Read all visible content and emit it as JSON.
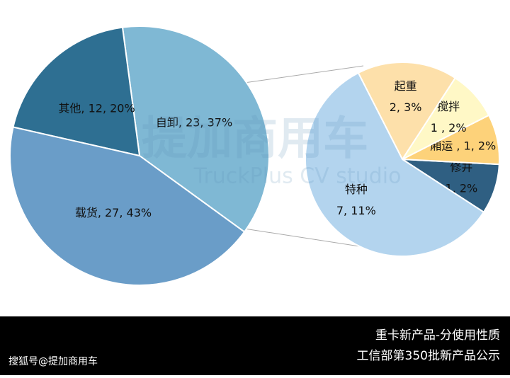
{
  "chart_data": [
    {
      "type": "pie",
      "categories": [
        "自卸",
        "其他",
        "载货"
      ],
      "values": [
        23,
        12,
        27
      ],
      "percents": [
        37,
        20,
        43
      ],
      "value_labels": [
        [
          "自卸, 23, 37%"
        ],
        [
          "其他, 12, 20%"
        ],
        [
          "载货, 27, 43%"
        ]
      ],
      "colors": [
        "#7fb8d4",
        "#2e6f92",
        "#6a9dc8"
      ]
    },
    {
      "type": "pie",
      "categories": [
        "修井",
        "厢运",
        "搅拌",
        "起重",
        "特种"
      ],
      "values": [
        1,
        1,
        1,
        2,
        7
      ],
      "percents": [
        2,
        2,
        2,
        3,
        11
      ],
      "value_labels": [
        [
          "修井",
          "1, 2%"
        ],
        [
          "厢运 , 1, 2%"
        ],
        [
          "搅拌",
          "1 , 2%"
        ],
        [
          "起重",
          "2, 3%"
        ],
        [
          "特种",
          "7, 11%"
        ]
      ],
      "colors": [
        "#2f5f82",
        "#fdd27a",
        "#fff8c6",
        "#fde0aa",
        "#b3d4ee"
      ]
    }
  ],
  "watermark": {
    "logo": "提加商用车",
    "sub": "TruckPlus CV studio"
  },
  "footer": {
    "title": "重卡新产品-分使用性质",
    "subtitle": "工信部第350批新产品公示",
    "source": "搜狐号@提加商用车"
  }
}
